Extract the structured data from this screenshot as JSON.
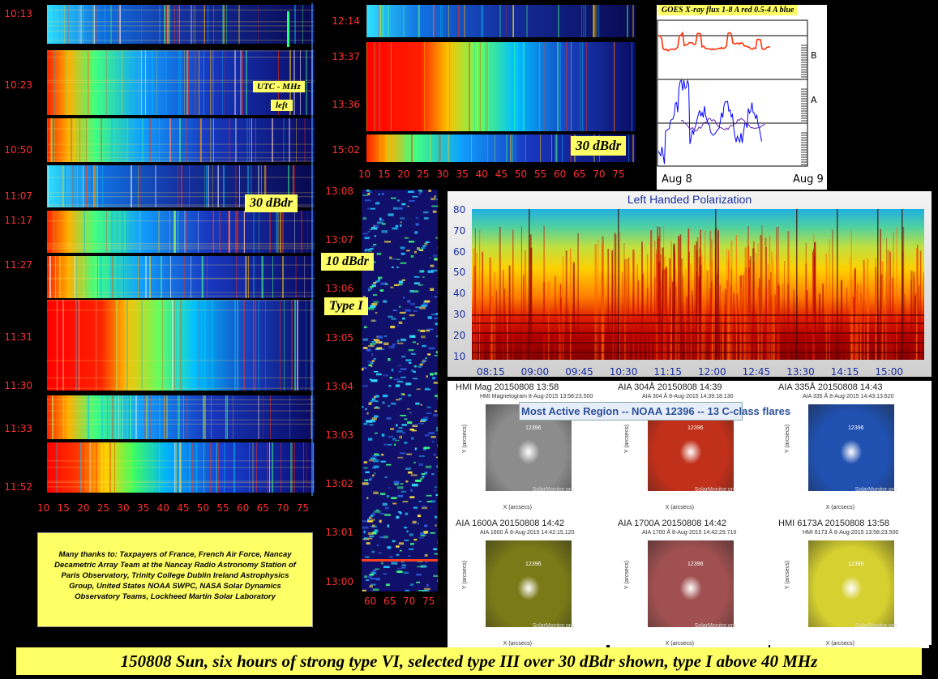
{
  "chart_data": [
    {
      "type": "heatmap",
      "name_ref": "nancay-left-column",
      "x_ticks": [
        "10",
        "15",
        "20",
        "25",
        "30",
        "35",
        "40",
        "45",
        "50",
        "55",
        "60",
        "65",
        "70",
        "75"
      ],
      "y_ticks": [
        "10:13",
        "10:23",
        "10:50",
        "11:07",
        "11:17",
        "11:27",
        "11:31",
        "11:30",
        "11:33",
        "11:52"
      ],
      "labels": [
        "UTC - MHz",
        "left",
        "30 dBdr"
      ]
    },
    {
      "type": "heatmap",
      "name_ref": "nancay-top-middle",
      "x_ticks": [
        "10",
        "15",
        "20",
        "25",
        "30",
        "35",
        "40",
        "45",
        "50",
        "55",
        "60",
        "65",
        "70",
        "75"
      ],
      "y_ticks": [
        "12:14",
        "13:37",
        "13:36",
        "15:02"
      ],
      "labels": [
        "30 dBdr"
      ]
    },
    {
      "type": "heatmap",
      "name_ref": "type-i-strip",
      "x_ticks": [
        "60",
        "65",
        "70",
        "75"
      ],
      "y_ticks": [
        "13:08",
        "13:07",
        "13:06",
        "13:05",
        "13:04",
        "13:03",
        "13:02",
        "13:01",
        "13:00"
      ],
      "labels": [
        "10 dBdr",
        "Type I"
      ]
    },
    {
      "type": "line",
      "name_ref": "goes-xray",
      "title": "GOES X-ray flux 1-8 A red 0.5-4 A blue",
      "x_ticks": [
        "Aug 8",
        "Aug 9"
      ],
      "y_ticks": [
        "B",
        "A"
      ],
      "series": [
        {
          "color": "#ff2a00"
        },
        {
          "color": "#0000ff"
        }
      ]
    },
    {
      "type": "heatmap",
      "name_ref": "left-handed-polarization",
      "title": "Left Handed Polarization",
      "x_ticks": [
        "08:15",
        "09:00",
        "09:45",
        "10:30",
        "11:15",
        "12:00",
        "12:45",
        "13:30",
        "14:15",
        "15:00"
      ],
      "y_ticks": [
        "80",
        "70",
        "60",
        "50",
        "40",
        "30",
        "20",
        "10"
      ]
    }
  ],
  "solar_images": {
    "banner": "Most Active Region -- NOAA 12396 -- 13 C-class flares",
    "tiles": [
      {
        "title": "HMI Mag 20150808 13:58",
        "sub": "HMI Magnetogram  8-Aug-2015 13:58:23.500",
        "color": "#8c8c8c"
      },
      {
        "title": "AIA 304Å 20150808 14:39",
        "sub": "AIA 304 Å  8-Aug-2015 14:39:18.130",
        "color": "#c0301a"
      },
      {
        "title": "AIA 335Å 20150808 14:43",
        "sub": "AIA 335 Å  8-Aug-2015 14:43:13.620",
        "color": "#2050b0"
      },
      {
        "title": "AIA 1600A 20150808 14:42",
        "sub": "AIA 1600 Å  8-Aug-2015 14:42:15.120",
        "color": "#7a7a18"
      },
      {
        "title": "AIA 1700A 20150808 14:42",
        "sub": "AIA 1700 Å  8-Aug-2015 14:42:29.710",
        "color": "#a05050"
      },
      {
        "title": "HMI 6173A 20150808 13:58",
        "sub": "HMI 6173 Å  8-Aug-2015 13:58:23.500",
        "color": "#d6d030"
      }
    ],
    "region_label": "12396",
    "credit": "SolarMonitor.org",
    "x_axis": "X (arcsecs)",
    "y_axis": "Y (arcsecs)"
  },
  "thanks": "Many thanks to: Taxpayers of France, French Air Force, Nancay Decametric Array Team at the Nancay Radio Astronomy Station of Paris Observatory, Trinity College Dublin Ireland Astrophysics Group, United States NOAA SWPC, NASA Solar Dynamics Observatory Teams, Lockheed Martin Solar Laboratory",
  "caption": "150808 Sun, six hours of strong type VI, selected type III over 30 dBdr shown, type I above 40 MHz"
}
